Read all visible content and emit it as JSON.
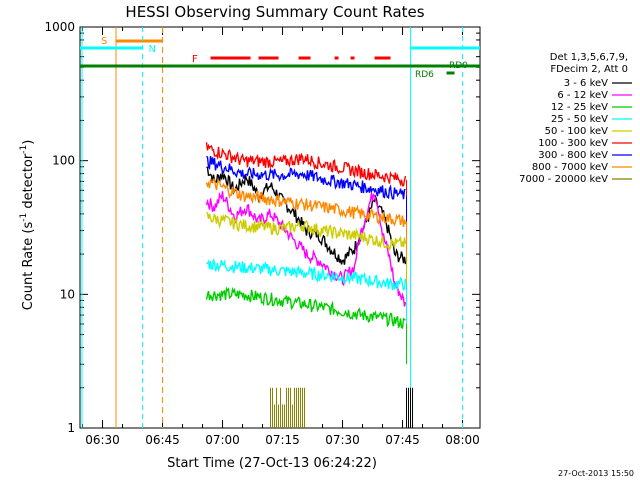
{
  "chart_data": {
    "type": "line",
    "title": "HESSI Observing Summary Count Rates",
    "xlabel": "Start Time (27-Oct-13 06:24:22)",
    "ylabel_main": "Count Rate (s",
    "ylabel_sup1": "-1",
    "ylabel_mid": " detector",
    "ylabel_sup2": "-1",
    "ylabel_end": ")",
    "footer": "27-Oct-2013 15:50",
    "x_ticks": [
      "06:30",
      "06:45",
      "07:00",
      "07:15",
      "07:30",
      "07:45",
      "08:00"
    ],
    "y_ticks": [
      "1",
      "10",
      "100",
      "1000"
    ],
    "y_scale": "log",
    "ylim": [
      1,
      1000
    ],
    "x_minutes_range": [
      "06:24:22",
      "08:04:22"
    ],
    "legend_header": [
      "Det 1,3,5,6,7,9,",
      "FDecim 2, Att 0"
    ],
    "series": [
      {
        "name": "3 - 6 keV",
        "color": "#000000",
        "points": [
          [
            "06:56",
            90
          ],
          [
            "06:58",
            70
          ],
          [
            "07:00",
            80
          ],
          [
            "07:03",
            60
          ],
          [
            "07:06",
            75
          ],
          [
            "07:09",
            55
          ],
          [
            "07:12",
            65
          ],
          [
            "07:15",
            50
          ],
          [
            "07:18",
            40
          ],
          [
            "07:21",
            30
          ],
          [
            "07:24",
            28
          ],
          [
            "07:27",
            22
          ],
          [
            "07:30",
            18
          ],
          [
            "07:33",
            22
          ],
          [
            "07:36",
            35
          ],
          [
            "07:38",
            50
          ],
          [
            "07:40",
            40
          ],
          [
            "07:43",
            20
          ],
          [
            "07:46",
            18
          ]
        ]
      },
      {
        "name": "6 - 12 keV",
        "color": "#ff00ff",
        "points": [
          [
            "06:56",
            50
          ],
          [
            "06:58",
            45
          ],
          [
            "07:00",
            55
          ],
          [
            "07:03",
            38
          ],
          [
            "07:06",
            45
          ],
          [
            "07:09",
            35
          ],
          [
            "07:12",
            40
          ],
          [
            "07:15",
            32
          ],
          [
            "07:18",
            25
          ],
          [
            "07:21",
            20
          ],
          [
            "07:24",
            18
          ],
          [
            "07:27",
            15
          ],
          [
            "07:30",
            13
          ],
          [
            "07:33",
            16
          ],
          [
            "07:36",
            40
          ],
          [
            "07:38",
            60
          ],
          [
            "07:40",
            28
          ],
          [
            "07:43",
            12
          ],
          [
            "07:46",
            8
          ]
        ]
      },
      {
        "name": "12 - 25 keV",
        "color": "#00cc00",
        "points": [
          [
            "06:56",
            10
          ],
          [
            "07:05",
            10
          ],
          [
            "07:15",
            9
          ],
          [
            "07:25",
            8
          ],
          [
            "07:35",
            7
          ],
          [
            "07:42",
            6.5
          ],
          [
            "07:46",
            6
          ]
        ]
      },
      {
        "name": "25 - 50 keV",
        "color": "#00ffff",
        "points": [
          [
            "06:56",
            17
          ],
          [
            "07:05",
            16
          ],
          [
            "07:15",
            15
          ],
          [
            "07:25",
            14
          ],
          [
            "07:35",
            13
          ],
          [
            "07:42",
            12
          ],
          [
            "07:46",
            12
          ]
        ]
      },
      {
        "name": "50 - 100 keV",
        "color": "#cccc00",
        "points": [
          [
            "06:56",
            38
          ],
          [
            "07:05",
            33
          ],
          [
            "07:15",
            31
          ],
          [
            "07:20",
            33
          ],
          [
            "07:25",
            30
          ],
          [
            "07:35",
            27
          ],
          [
            "07:42",
            24
          ],
          [
            "07:46",
            24
          ]
        ]
      },
      {
        "name": "100 - 300 keV",
        "color": "#ff0000",
        "points": [
          [
            "06:56",
            125
          ],
          [
            "07:05",
            100
          ],
          [
            "07:15",
            98
          ],
          [
            "07:20",
            105
          ],
          [
            "07:25",
            95
          ],
          [
            "07:35",
            82
          ],
          [
            "07:42",
            75
          ],
          [
            "07:46",
            72
          ]
        ]
      },
      {
        "name": "300 - 800 keV",
        "color": "#0000ff",
        "points": [
          [
            "06:56",
            100
          ],
          [
            "07:05",
            80
          ],
          [
            "07:15",
            78
          ],
          [
            "07:20",
            80
          ],
          [
            "07:25",
            73
          ],
          [
            "07:35",
            64
          ],
          [
            "07:42",
            58
          ],
          [
            "07:46",
            55
          ]
        ]
      },
      {
        "name": "800 - 7000 keV",
        "color": "#ff8800",
        "points": [
          [
            "06:56",
            70
          ],
          [
            "07:05",
            55
          ],
          [
            "07:15",
            50
          ],
          [
            "07:25",
            45
          ],
          [
            "07:35",
            40
          ],
          [
            "07:42",
            37
          ],
          [
            "07:46",
            35
          ]
        ]
      },
      {
        "name": "7000 - 20000 keV",
        "color": "#808000",
        "points": [
          [
            "07:12",
            2
          ],
          [
            "07:21",
            2
          ]
        ]
      }
    ],
    "flags": [
      {
        "label": "S",
        "color": "#ff8800"
      },
      {
        "label": "N",
        "color": "#00ffff"
      },
      {
        "label": "F",
        "color": "#ff0000"
      },
      {
        "label": "RD0",
        "color": "#008000"
      },
      {
        "label": "RD6",
        "color": "#008000"
      }
    ]
  }
}
